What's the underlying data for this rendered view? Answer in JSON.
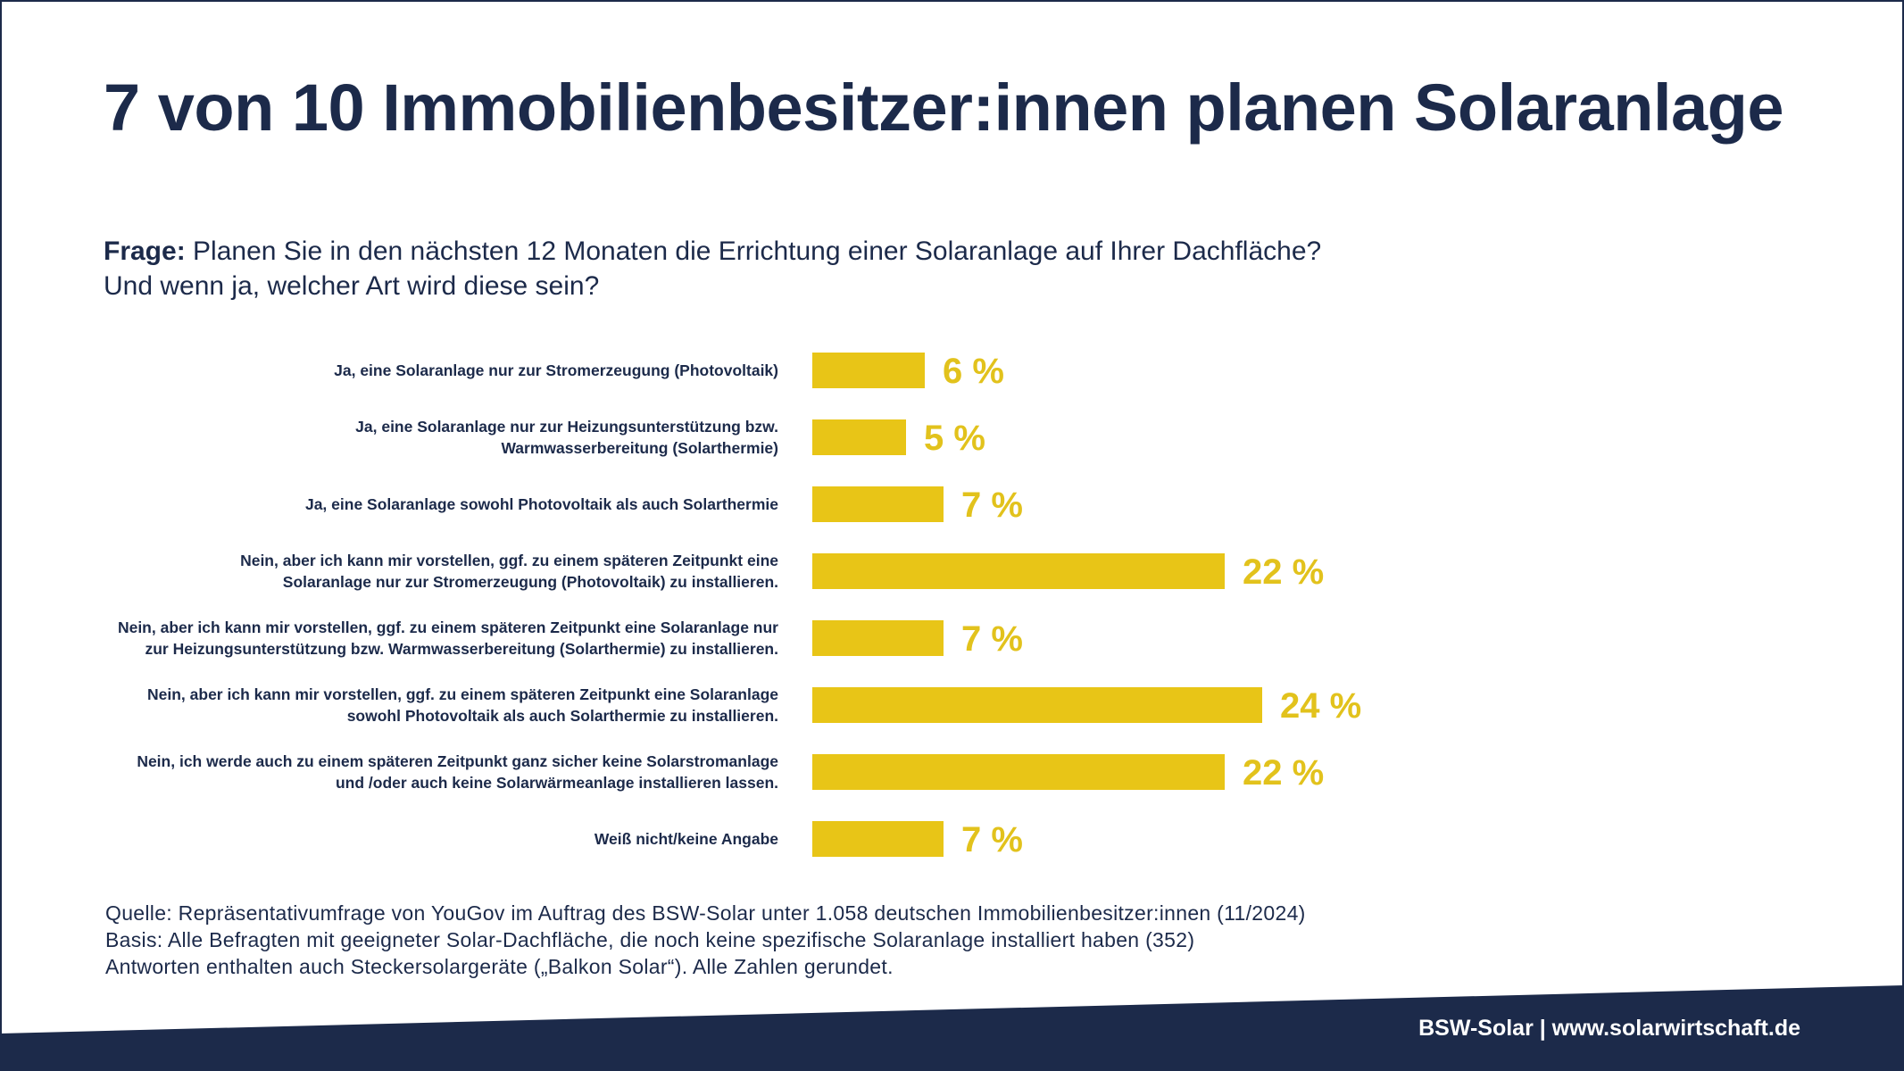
{
  "title": "7 von 10 Immobilienbesitzer:innen planen Solaranlage",
  "question": {
    "label": "Frage:",
    "line1": " Planen Sie in den nächsten 12 Monaten die Errichtung einer Solaranlage auf Ihrer Dachfläche?",
    "line2": "Und wenn ja, welcher Art wird diese sein?"
  },
  "colors": {
    "navy": "#1c2a4a",
    "bar": "#e8c517",
    "value_label": "#e2c21c"
  },
  "chart_data": {
    "type": "bar",
    "orientation": "horizontal",
    "categories": [
      [
        "Ja, eine Solaranlage nur zur Stromerzeugung (Photovoltaik)"
      ],
      [
        "Ja, eine Solaranlage nur zur Heizungsunterstützung bzw.",
        "Warmwasserbereitung (Solarthermie)"
      ],
      [
        "Ja, eine Solaranlage sowohl Photovoltaik als auch Solarthermie"
      ],
      [
        "Nein, aber ich kann mir vorstellen, ggf. zu einem späteren Zeitpunkt eine",
        "Solaranlage nur zur Stromerzeugung (Photovoltaik) zu installieren."
      ],
      [
        "Nein, aber ich kann mir vorstellen, ggf. zu einem späteren Zeitpunkt eine Solaranlage nur",
        "zur Heizungsunterstützung bzw. Warmwasserbereitung (Solarthermie) zu installieren."
      ],
      [
        "Nein, aber ich kann mir vorstellen, ggf. zu einem späteren Zeitpunkt eine Solaranlage",
        "sowohl Photovoltaik als auch  Solarthermie  zu installieren."
      ],
      [
        "Nein, ich werde auch zu einem späteren Zeitpunkt ganz sicher keine Solarstromanlage",
        "und /oder auch keine Solarwärmeanlage installieren lassen."
      ],
      [
        "Weiß nicht/keine Angabe"
      ]
    ],
    "values": [
      6,
      5,
      7,
      22,
      7,
      24,
      22,
      7
    ],
    "value_labels": [
      "6 %",
      "5 %",
      "7 %",
      "22 %",
      "7 %",
      "24 %",
      "22 %",
      "7 %"
    ],
    "unit": "%",
    "xlim": [
      0,
      30
    ],
    "grid": false,
    "legend": "none"
  },
  "footnotes": [
    "Quelle: Repräsentativumfrage von YouGov im Auftrag des BSW-Solar unter 1.058 deutschen Immobilienbesitzer:innen (11/2024)",
    "Basis: Alle Befragten mit geeigneter Solar-Dachfläche, die noch keine spezifische Solaranlage installiert haben (352)",
    "Antworten enthalten auch Steckersolargeräte („Balkon Solar“). Alle Zahlen gerundet."
  ],
  "footer": "BSW-Solar | www.solarwirtschaft.de"
}
